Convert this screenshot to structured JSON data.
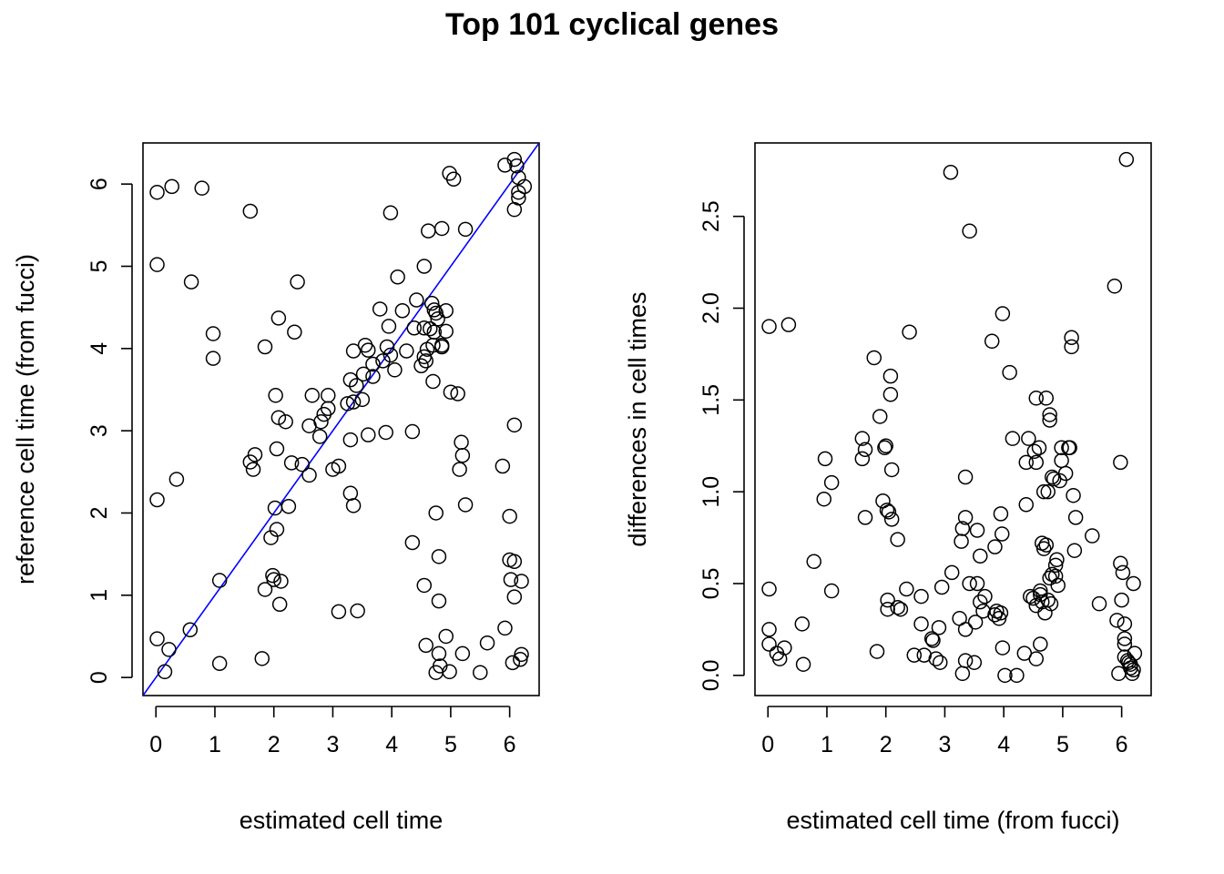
{
  "title": "Top 101 cyclical genes",
  "colors": {
    "points": "#000000",
    "reference_line": "#0000ff",
    "axes": "#000000"
  },
  "chart_data": [
    {
      "type": "scatter",
      "xlabel": "estimated cell time",
      "ylabel": "reference cell time (from fucci)",
      "xlim": [
        -0.22,
        6.5
      ],
      "ylim": [
        -0.22,
        6.5
      ],
      "xticks": [
        "0",
        "1",
        "2",
        "3",
        "4",
        "5",
        "6"
      ],
      "yticks": [
        "0",
        "1",
        "2",
        "3",
        "4",
        "5",
        "6"
      ],
      "grid": false,
      "reference_line": {
        "slope": 1,
        "intercept": 0,
        "color": "#0000ff"
      },
      "points": [
        [
          0.02,
          5.9
        ],
        [
          0.27,
          5.97
        ],
        [
          0.78,
          5.95
        ],
        [
          1.6,
          5.67
        ],
        [
          0.02,
          5.02
        ],
        [
          0.6,
          4.81
        ],
        [
          0.97,
          4.18
        ],
        [
          0.97,
          3.88
        ],
        [
          1.85,
          4.02
        ],
        [
          2.08,
          4.37
        ],
        [
          2.35,
          4.2
        ],
        [
          2.4,
          4.81
        ],
        [
          2.03,
          3.43
        ],
        [
          2.08,
          3.16
        ],
        [
          2.2,
          3.11
        ],
        [
          2.3,
          2.61
        ],
        [
          2.48,
          2.59
        ],
        [
          2.6,
          2.46
        ],
        [
          2.6,
          3.06
        ],
        [
          2.65,
          3.43
        ],
        [
          2.78,
          2.93
        ],
        [
          2.8,
          3.11
        ],
        [
          2.85,
          3.2
        ],
        [
          2.92,
          3.27
        ],
        [
          2.92,
          3.43
        ],
        [
          3.0,
          2.53
        ],
        [
          3.1,
          2.57
        ],
        [
          3.25,
          3.33
        ],
        [
          3.3,
          3.62
        ],
        [
          3.3,
          2.89
        ],
        [
          3.35,
          3.35
        ],
        [
          3.35,
          3.97
        ],
        [
          3.4,
          3.55
        ],
        [
          3.5,
          3.38
        ],
        [
          3.52,
          3.69
        ],
        [
          3.55,
          4.04
        ],
        [
          3.6,
          3.98
        ],
        [
          3.6,
          2.95
        ],
        [
          3.68,
          3.66
        ],
        [
          3.68,
          3.81
        ],
        [
          3.8,
          4.48
        ],
        [
          3.85,
          3.85
        ],
        [
          3.9,
          2.98
        ],
        [
          3.92,
          4.02
        ],
        [
          3.95,
          4.27
        ],
        [
          3.98,
          3.92
        ],
        [
          3.98,
          5.65
        ],
        [
          4.05,
          3.74
        ],
        [
          4.1,
          4.87
        ],
        [
          4.18,
          4.46
        ],
        [
          4.25,
          3.97
        ],
        [
          4.35,
          2.99
        ],
        [
          4.35,
          1.64
        ],
        [
          4.38,
          4.25
        ],
        [
          4.42,
          4.59
        ],
        [
          4.5,
          3.79
        ],
        [
          4.55,
          3.9
        ],
        [
          4.55,
          4.25
        ],
        [
          4.55,
          5.0
        ],
        [
          4.58,
          3.85
        ],
        [
          4.6,
          3.99
        ],
        [
          4.62,
          5.43
        ],
        [
          4.65,
          4.24
        ],
        [
          4.68,
          4.55
        ],
        [
          4.7,
          3.6
        ],
        [
          4.7,
          4.04
        ],
        [
          4.72,
          4.47
        ],
        [
          4.72,
          4.2
        ],
        [
          4.75,
          4.43
        ],
        [
          4.78,
          4.36
        ],
        [
          4.85,
          5.46
        ],
        [
          4.85,
          4.04
        ],
        [
          4.85,
          4.02
        ],
        [
          4.92,
          4.21
        ],
        [
          4.92,
          4.46
        ],
        [
          4.98,
          6.13
        ],
        [
          5.0,
          3.47
        ],
        [
          5.05,
          6.06
        ],
        [
          5.12,
          3.45
        ],
        [
          5.15,
          2.53
        ],
        [
          5.18,
          2.86
        ],
        [
          5.2,
          2.7
        ],
        [
          5.25,
          5.45
        ],
        [
          5.25,
          2.1
        ],
        [
          1.6,
          2.62
        ],
        [
          1.65,
          2.53
        ],
        [
          1.68,
          2.71
        ],
        [
          0.02,
          2.16
        ],
        [
          0.35,
          2.41
        ],
        [
          1.85,
          1.07
        ],
        [
          1.95,
          1.7
        ],
        [
          1.98,
          1.24
        ],
        [
          2.0,
          1.19
        ],
        [
          2.02,
          2.06
        ],
        [
          2.05,
          1.8
        ],
        [
          2.05,
          2.78
        ],
        [
          2.12,
          1.17
        ],
        [
          2.1,
          0.89
        ],
        [
          2.25,
          2.08
        ],
        [
          1.08,
          1.18
        ],
        [
          0.02,
          0.47
        ],
        [
          0.15,
          0.07
        ],
        [
          0.22,
          0.34
        ],
        [
          0.58,
          0.58
        ],
        [
          1.08,
          0.17
        ],
        [
          1.8,
          0.23
        ],
        [
          3.1,
          0.8
        ],
        [
          3.3,
          2.24
        ],
        [
          3.35,
          2.09
        ],
        [
          3.42,
          0.81
        ],
        [
          4.55,
          1.12
        ],
        [
          4.58,
          0.39
        ],
        [
          4.75,
          2.0
        ],
        [
          4.75,
          0.06
        ],
        [
          4.8,
          1.47
        ],
        [
          4.8,
          0.93
        ],
        [
          4.8,
          0.29
        ],
        [
          4.82,
          0.14
        ],
        [
          4.92,
          0.5
        ],
        [
          4.98,
          0.07
        ],
        [
          5.2,
          0.29
        ],
        [
          5.5,
          0.06
        ],
        [
          5.62,
          0.42
        ],
        [
          5.88,
          2.57
        ],
        [
          5.92,
          6.23
        ],
        [
          5.92,
          0.6
        ],
        [
          6.0,
          1.43
        ],
        [
          6.0,
          1.96
        ],
        [
          6.02,
          1.19
        ],
        [
          6.05,
          0.18
        ],
        [
          6.08,
          1.41
        ],
        [
          6.08,
          0.98
        ],
        [
          6.08,
          3.07
        ],
        [
          6.08,
          5.69
        ],
        [
          6.08,
          6.3
        ],
        [
          6.12,
          6.22
        ],
        [
          6.15,
          5.83
        ],
        [
          6.15,
          5.9
        ],
        [
          6.15,
          6.08
        ],
        [
          6.18,
          0.22
        ],
        [
          6.2,
          1.17
        ],
        [
          6.2,
          0.28
        ],
        [
          6.25,
          5.97
        ]
      ]
    },
    {
      "type": "scatter",
      "xlabel": "estimated cell time (from fucci)",
      "ylabel": "differences in cell times",
      "xlim": [
        -0.22,
        6.5
      ],
      "ylim": [
        -0.11,
        2.9
      ],
      "xticks": [
        "0",
        "1",
        "2",
        "3",
        "4",
        "5",
        "6"
      ],
      "yticks": [
        "0.0",
        "0.5",
        "1.0",
        "1.5",
        "2.0",
        "2.5"
      ],
      "grid": false,
      "points": [
        [
          0.02,
          1.9
        ],
        [
          0.35,
          1.91
        ],
        [
          0.02,
          0.47
        ],
        [
          0.02,
          0.25
        ],
        [
          0.02,
          0.17
        ],
        [
          0.15,
          0.12
        ],
        [
          0.2,
          0.09
        ],
        [
          0.28,
          0.15
        ],
        [
          0.58,
          0.28
        ],
        [
          0.6,
          0.06
        ],
        [
          0.78,
          0.62
        ],
        [
          0.95,
          0.96
        ],
        [
          0.97,
          1.18
        ],
        [
          1.08,
          1.05
        ],
        [
          1.08,
          0.46
        ],
        [
          1.6,
          1.29
        ],
        [
          1.6,
          1.18
        ],
        [
          1.65,
          1.23
        ],
        [
          1.65,
          0.86
        ],
        [
          1.8,
          1.73
        ],
        [
          1.85,
          0.13
        ],
        [
          1.9,
          1.41
        ],
        [
          1.95,
          0.95
        ],
        [
          1.98,
          1.24
        ],
        [
          2.0,
          1.25
        ],
        [
          2.02,
          0.9
        ],
        [
          2.03,
          0.41
        ],
        [
          2.03,
          0.36
        ],
        [
          2.05,
          0.89
        ],
        [
          2.08,
          1.53
        ],
        [
          2.08,
          1.63
        ],
        [
          2.1,
          1.12
        ],
        [
          2.1,
          0.85
        ],
        [
          2.2,
          0.74
        ],
        [
          2.2,
          0.37
        ],
        [
          2.25,
          0.36
        ],
        [
          2.35,
          0.47
        ],
        [
          2.4,
          1.87
        ],
        [
          2.48,
          0.11
        ],
        [
          2.6,
          0.43
        ],
        [
          2.6,
          0.28
        ],
        [
          2.65,
          0.11
        ],
        [
          2.78,
          0.2
        ],
        [
          2.8,
          0.19
        ],
        [
          2.85,
          0.09
        ],
        [
          2.9,
          0.26
        ],
        [
          2.92,
          0.07
        ],
        [
          2.95,
          0.48
        ],
        [
          3.1,
          2.74
        ],
        [
          3.12,
          0.56
        ],
        [
          3.25,
          0.31
        ],
        [
          3.28,
          0.73
        ],
        [
          3.3,
          0.8
        ],
        [
          3.3,
          0.01
        ],
        [
          3.35,
          1.08
        ],
        [
          3.35,
          0.86
        ],
        [
          3.35,
          0.25
        ],
        [
          3.35,
          0.08
        ],
        [
          3.42,
          2.42
        ],
        [
          3.42,
          0.5
        ],
        [
          3.5,
          0.07
        ],
        [
          3.52,
          0.29
        ],
        [
          3.55,
          0.79
        ],
        [
          3.55,
          0.5
        ],
        [
          3.6,
          0.65
        ],
        [
          3.6,
          0.4
        ],
        [
          3.65,
          0.35
        ],
        [
          3.68,
          0.43
        ],
        [
          3.8,
          1.82
        ],
        [
          3.85,
          0.7
        ],
        [
          3.85,
          0.33
        ],
        [
          3.88,
          0.35
        ],
        [
          3.92,
          0.31
        ],
        [
          3.95,
          0.34
        ],
        [
          3.95,
          0.88
        ],
        [
          3.97,
          0.77
        ],
        [
          3.98,
          0.15
        ],
        [
          3.98,
          1.97
        ],
        [
          4.02,
          0.0
        ],
        [
          4.1,
          1.65
        ],
        [
          4.15,
          1.29
        ],
        [
          4.22,
          0.0
        ],
        [
          4.35,
          0.12
        ],
        [
          4.38,
          0.93
        ],
        [
          4.38,
          1.16
        ],
        [
          4.42,
          1.29
        ],
        [
          4.45,
          0.43
        ],
        [
          4.5,
          0.42
        ],
        [
          4.52,
          1.22
        ],
        [
          4.55,
          1.51
        ],
        [
          4.55,
          0.38
        ],
        [
          4.55,
          0.09
        ],
        [
          4.55,
          1.16
        ],
        [
          4.6,
          1.24
        ],
        [
          4.62,
          0.46
        ],
        [
          4.62,
          0.44
        ],
        [
          4.62,
          0.17
        ],
        [
          4.65,
          0.72
        ],
        [
          4.65,
          0.4
        ],
        [
          4.68,
          1.0
        ],
        [
          4.68,
          0.69
        ],
        [
          4.7,
          0.34
        ],
        [
          4.72,
          1.51
        ],
        [
          4.72,
          0.71
        ],
        [
          4.75,
          0.41
        ],
        [
          4.75,
          1.0
        ],
        [
          4.78,
          1.39
        ],
        [
          4.78,
          1.42
        ],
        [
          4.78,
          0.53
        ],
        [
          4.8,
          0.39
        ],
        [
          4.82,
          0.55
        ],
        [
          4.82,
          1.08
        ],
        [
          4.85,
          1.07
        ],
        [
          4.88,
          0.54
        ],
        [
          4.88,
          0.6
        ],
        [
          4.9,
          0.63
        ],
        [
          4.92,
          0.49
        ],
        [
          4.95,
          1.06
        ],
        [
          4.98,
          1.17
        ],
        [
          4.98,
          1.24
        ],
        [
          5.05,
          1.1
        ],
        [
          5.1,
          1.24
        ],
        [
          5.12,
          1.24
        ],
        [
          5.15,
          1.79
        ],
        [
          5.15,
          1.84
        ],
        [
          5.18,
          0.98
        ],
        [
          5.2,
          0.68
        ],
        [
          5.22,
          0.86
        ],
        [
          5.5,
          0.76
        ],
        [
          5.62,
          0.39
        ],
        [
          5.88,
          2.12
        ],
        [
          5.92,
          0.3
        ],
        [
          5.95,
          0.01
        ],
        [
          5.98,
          1.16
        ],
        [
          5.98,
          0.61
        ],
        [
          6.0,
          0.41
        ],
        [
          6.02,
          0.56
        ],
        [
          6.05,
          0.28
        ],
        [
          6.05,
          0.2
        ],
        [
          6.05,
          0.17
        ],
        [
          6.05,
          0.1
        ],
        [
          6.08,
          2.81
        ],
        [
          6.1,
          0.08
        ],
        [
          6.12,
          0.07
        ],
        [
          6.15,
          0.06
        ],
        [
          6.15,
          0.04
        ],
        [
          6.18,
          0.01
        ],
        [
          6.2,
          0.03
        ],
        [
          6.22,
          0.12
        ],
        [
          6.2,
          0.5
        ]
      ]
    }
  ]
}
